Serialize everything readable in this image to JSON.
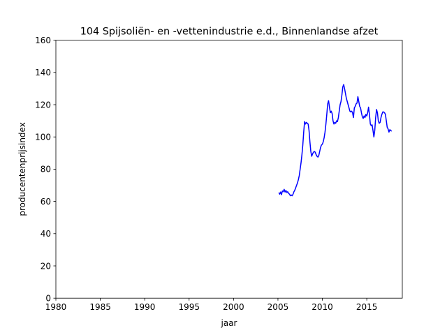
{
  "chart_data": {
    "type": "line",
    "title": "104 Spijsoliën- en -vettenindustrie e.d., Binnenlandse afzet",
    "xlabel": "jaar",
    "ylabel": "producentenprijsindex",
    "xlim": [
      1980,
      2019
    ],
    "ylim": [
      0,
      160
    ],
    "xticks": [
      1980,
      1985,
      1990,
      1995,
      2000,
      2005,
      2010,
      2015
    ],
    "yticks": [
      0,
      20,
      40,
      60,
      80,
      100,
      120,
      140,
      160
    ],
    "grid": false,
    "line_color": "#0000ff",
    "series": [
      {
        "points": [
          [
            2005.1,
            65.5
          ],
          [
            2005.2,
            64.5
          ],
          [
            2005.3,
            65.8
          ],
          [
            2005.4,
            64.2
          ],
          [
            2005.5,
            66.5
          ],
          [
            2005.6,
            66.0
          ],
          [
            2005.7,
            67.5
          ],
          [
            2005.8,
            65.8
          ],
          [
            2005.9,
            66.8
          ],
          [
            2006.0,
            65.5
          ],
          [
            2006.1,
            66.0
          ],
          [
            2006.2,
            65.0
          ],
          [
            2006.3,
            64.5
          ],
          [
            2006.4,
            63.5
          ],
          [
            2006.5,
            64.0
          ],
          [
            2006.6,
            63.5
          ],
          [
            2006.7,
            64.5
          ],
          [
            2006.8,
            66.0
          ],
          [
            2006.9,
            67.0
          ],
          [
            2007.0,
            68.5
          ],
          [
            2007.1,
            70.0
          ],
          [
            2007.2,
            71.5
          ],
          [
            2007.3,
            73.5
          ],
          [
            2007.4,
            76.0
          ],
          [
            2007.5,
            80.0
          ],
          [
            2007.6,
            84.0
          ],
          [
            2007.7,
            89.0
          ],
          [
            2007.8,
            95.0
          ],
          [
            2007.9,
            103.0
          ],
          [
            2008.0,
            109.5
          ],
          [
            2008.1,
            108.0
          ],
          [
            2008.2,
            109.0
          ],
          [
            2008.3,
            108.5
          ],
          [
            2008.4,
            108.0
          ],
          [
            2008.5,
            104.0
          ],
          [
            2008.6,
            97.0
          ],
          [
            2008.7,
            91.0
          ],
          [
            2008.8,
            88.0
          ],
          [
            2008.9,
            89.5
          ],
          [
            2009.0,
            90.5
          ],
          [
            2009.1,
            91.0
          ],
          [
            2009.2,
            90.5
          ],
          [
            2009.3,
            89.0
          ],
          [
            2009.4,
            88.0
          ],
          [
            2009.5,
            87.5
          ],
          [
            2009.6,
            88.5
          ],
          [
            2009.7,
            91.0
          ],
          [
            2009.8,
            93.5
          ],
          [
            2009.9,
            95.0
          ],
          [
            2010.0,
            95.5
          ],
          [
            2010.1,
            97.0
          ],
          [
            2010.2,
            99.5
          ],
          [
            2010.3,
            103.0
          ],
          [
            2010.4,
            108.0
          ],
          [
            2010.5,
            114.0
          ],
          [
            2010.6,
            120.5
          ],
          [
            2010.7,
            122.5
          ],
          [
            2010.8,
            118.5
          ],
          [
            2010.9,
            115.0
          ],
          [
            2011.0,
            116.0
          ],
          [
            2011.1,
            114.5
          ],
          [
            2011.2,
            110.0
          ],
          [
            2011.3,
            108.0
          ],
          [
            2011.4,
            109.0
          ],
          [
            2011.5,
            108.5
          ],
          [
            2011.6,
            110.0
          ],
          [
            2011.7,
            109.5
          ],
          [
            2011.8,
            112.0
          ],
          [
            2011.9,
            116.0
          ],
          [
            2012.0,
            120.0
          ],
          [
            2012.1,
            122.0
          ],
          [
            2012.2,
            126.0
          ],
          [
            2012.3,
            131.0
          ],
          [
            2012.4,
            132.5
          ],
          [
            2012.5,
            130.0
          ],
          [
            2012.6,
            127.0
          ],
          [
            2012.7,
            124.0
          ],
          [
            2012.8,
            122.0
          ],
          [
            2012.9,
            120.0
          ],
          [
            2013.0,
            118.0
          ],
          [
            2013.1,
            116.0
          ],
          [
            2013.2,
            115.5
          ],
          [
            2013.3,
            116.0
          ],
          [
            2013.4,
            115.0
          ],
          [
            2013.5,
            112.0
          ],
          [
            2013.6,
            118.0
          ],
          [
            2013.7,
            119.0
          ],
          [
            2013.8,
            120.5
          ],
          [
            2013.9,
            121.0
          ],
          [
            2014.0,
            125.0
          ],
          [
            2014.1,
            122.0
          ],
          [
            2014.2,
            119.0
          ],
          [
            2014.3,
            118.0
          ],
          [
            2014.4,
            115.0
          ],
          [
            2014.5,
            112.5
          ],
          [
            2014.6,
            111.5
          ],
          [
            2014.7,
            113.0
          ],
          [
            2014.8,
            112.0
          ],
          [
            2014.9,
            114.0
          ],
          [
            2015.0,
            113.0
          ],
          [
            2015.1,
            115.0
          ],
          [
            2015.2,
            118.5
          ],
          [
            2015.3,
            114.0
          ],
          [
            2015.4,
            108.0
          ],
          [
            2015.5,
            107.0
          ],
          [
            2015.6,
            107.5
          ],
          [
            2015.7,
            104.0
          ],
          [
            2015.8,
            100.0
          ],
          [
            2015.9,
            104.0
          ],
          [
            2016.0,
            112.0
          ],
          [
            2016.1,
            117.0
          ],
          [
            2016.2,
            115.0
          ],
          [
            2016.3,
            110.0
          ],
          [
            2016.4,
            108.5
          ],
          [
            2016.5,
            109.0
          ],
          [
            2016.6,
            112.0
          ],
          [
            2016.7,
            114.0
          ],
          [
            2016.8,
            115.5
          ],
          [
            2016.9,
            115.5
          ],
          [
            2017.0,
            115.0
          ],
          [
            2017.1,
            114.0
          ],
          [
            2017.2,
            110.0
          ],
          [
            2017.3,
            106.0
          ],
          [
            2017.4,
            105.0
          ],
          [
            2017.5,
            103.0
          ],
          [
            2017.6,
            104.5
          ],
          [
            2017.7,
            104.0
          ],
          [
            2017.8,
            103.5
          ]
        ]
      }
    ]
  }
}
